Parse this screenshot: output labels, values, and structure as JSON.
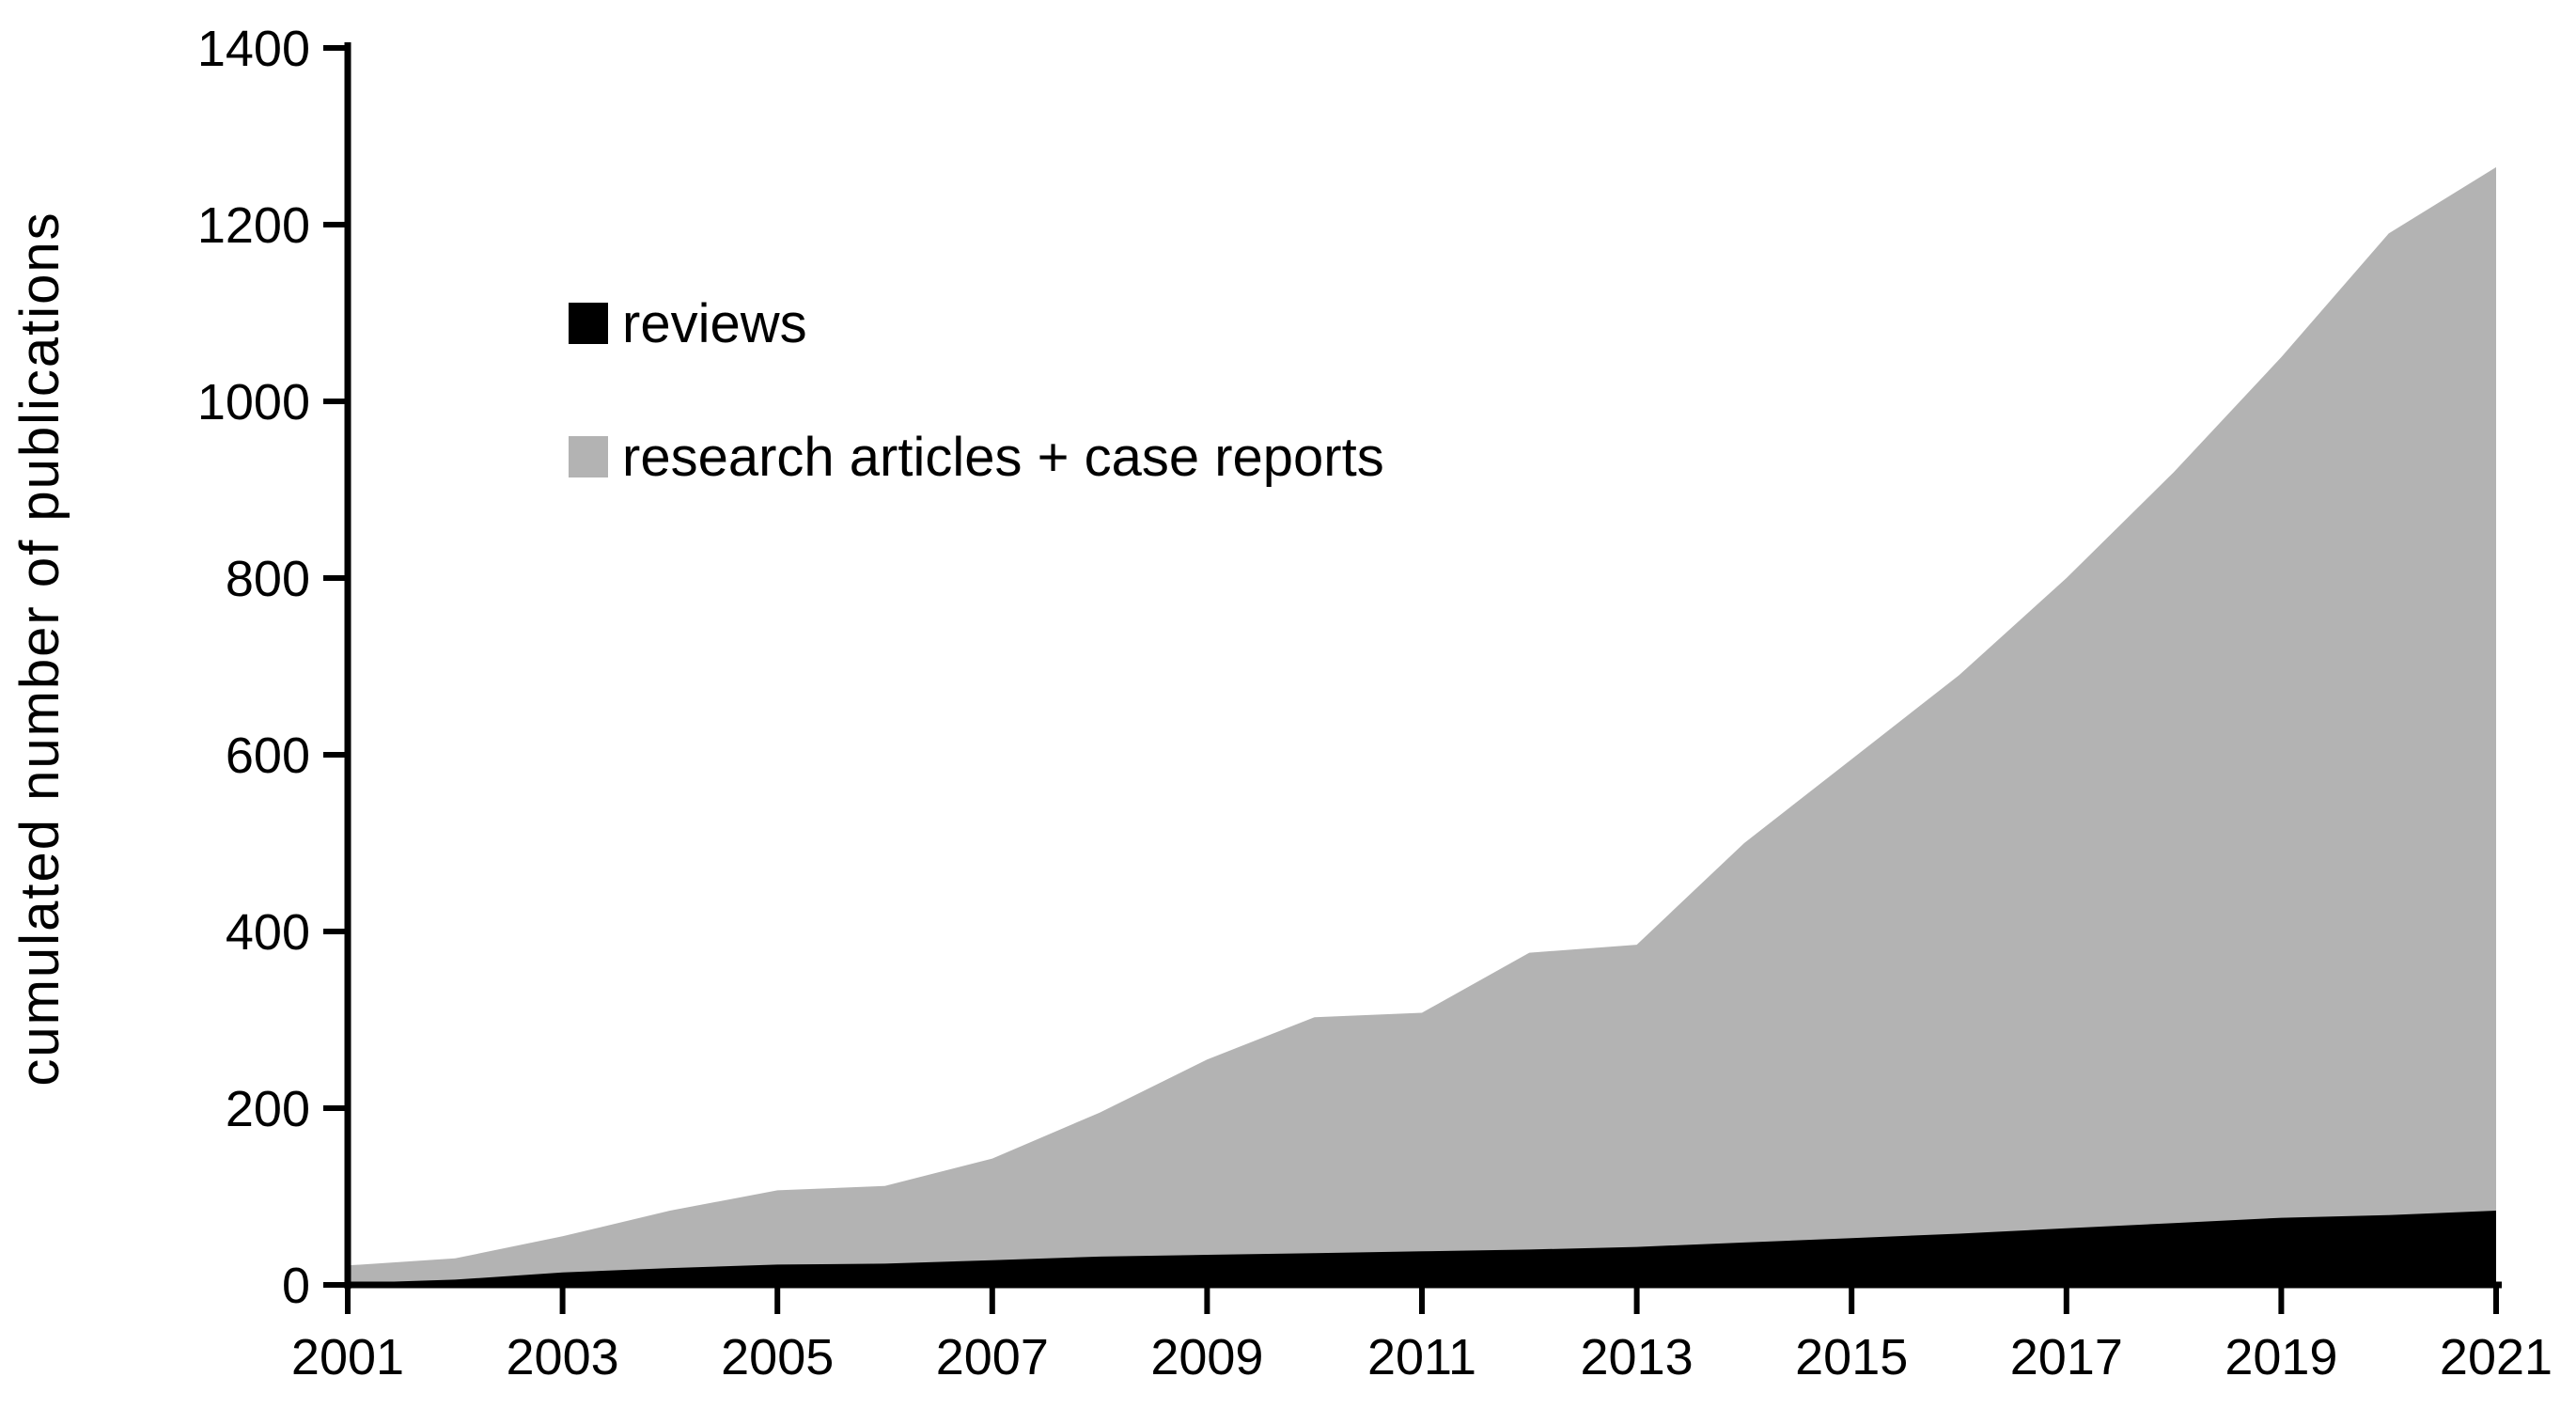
{
  "chart_data": {
    "type": "area",
    "stacked": true,
    "title": "",
    "xlabel": "",
    "ylabel": "cumulated number of publications",
    "x": [
      2001,
      2002,
      2003,
      2004,
      2005,
      2006,
      2007,
      2008,
      2009,
      2010,
      2011,
      2012,
      2013,
      2014,
      2015,
      2016,
      2017,
      2018,
      2019,
      2020,
      2021
    ],
    "series": [
      {
        "name": "reviews",
        "color": "#000000",
        "values": [
          2,
          6,
          14,
          19,
          23,
          24,
          28,
          32,
          34,
          36,
          38,
          40,
          43,
          48,
          53,
          58,
          64,
          70,
          76,
          79,
          84
        ]
      },
      {
        "name": "research articles + case reports",
        "color": "#b3b3b3",
        "values": [
          20,
          24,
          41,
          65,
          84,
          88,
          115,
          163,
          221,
          267,
          270,
          336,
          342,
          452,
          542,
          632,
          736,
          850,
          974,
          1111,
          1181
        ]
      }
    ],
    "stacked_totals": [
      22,
      30,
      55,
      84,
      107,
      112,
      143,
      195,
      255,
      303,
      308,
      376,
      385,
      500,
      595,
      690,
      800,
      920,
      1050,
      1190,
      1265
    ],
    "ylim": [
      0,
      1400
    ],
    "y_ticks": [
      0,
      200,
      400,
      600,
      800,
      1000,
      1200,
      1400
    ],
    "x_tick_labels": [
      "2001",
      "2003",
      "2005",
      "2007",
      "2009",
      "2011",
      "2013",
      "2015",
      "2017",
      "2019",
      "2021"
    ],
    "grid": false,
    "legend_position": "upper-left-inside",
    "axis_color": "#000000",
    "background_color": "#ffffff"
  }
}
